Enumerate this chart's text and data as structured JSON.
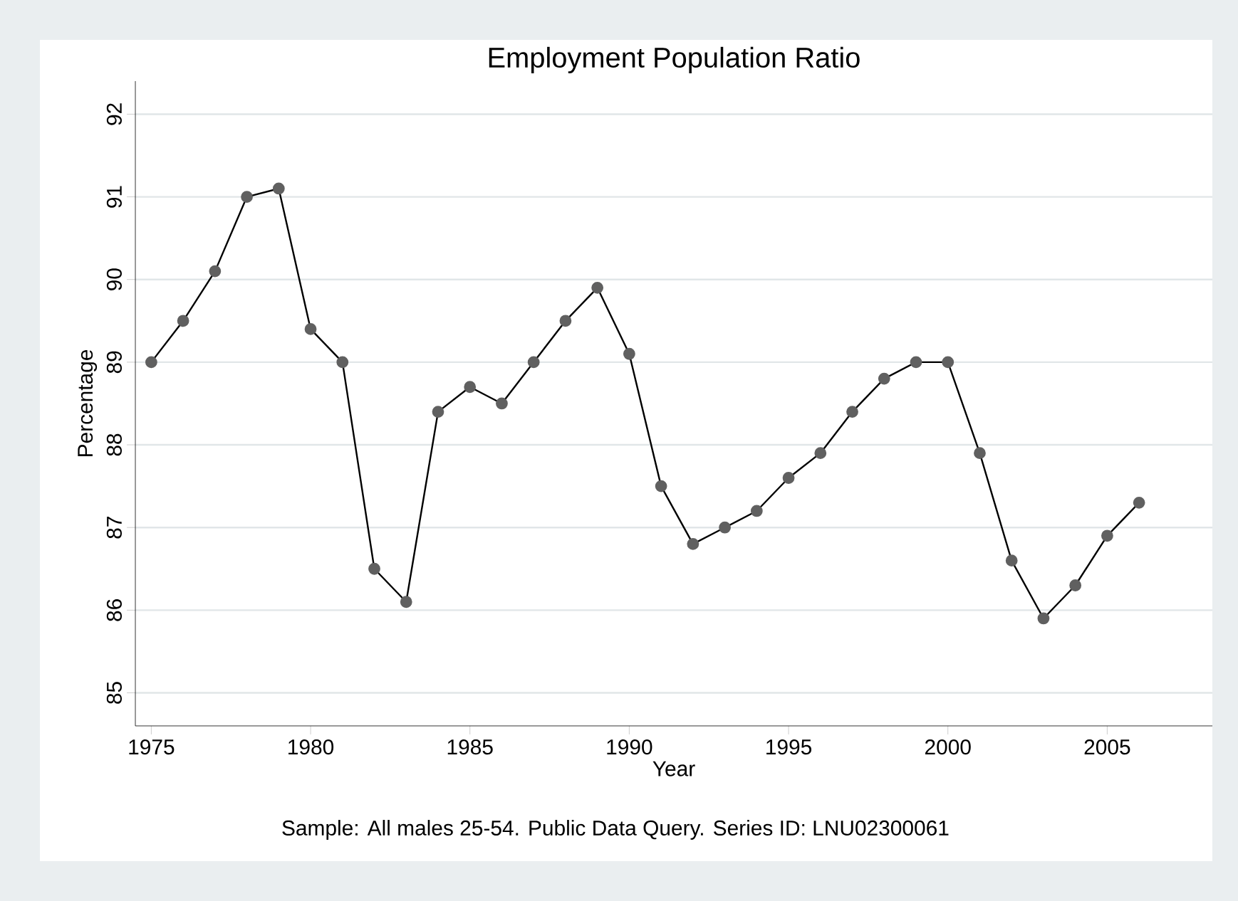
{
  "chart_data": {
    "type": "line",
    "title": "Employment Population Ratio",
    "xlabel": "Year",
    "ylabel": "Percentage",
    "annotations": [
      "Sample: All males 25-54. Public Data Query. Series ID: LNU02300061"
    ],
    "x": [
      1975,
      1976,
      1977,
      1978,
      1979,
      1980,
      1981,
      1982,
      1983,
      1984,
      1985,
      1986,
      1987,
      1988,
      1989,
      1990,
      1991,
      1992,
      1993,
      1994,
      1995,
      1996,
      1997,
      1998,
      1999,
      2000,
      2001,
      2002,
      2003,
      2004,
      2005,
      2006
    ],
    "series": [
      {
        "color": "#606060",
        "values": [
          89.0,
          89.5,
          90.1,
          91.0,
          91.1,
          89.4,
          89.0,
          86.5,
          86.1,
          88.4,
          88.7,
          88.5,
          89.0,
          89.5,
          89.9,
          89.1,
          87.5,
          86.8,
          87.0,
          87.2,
          87.6,
          87.9,
          88.4,
          88.8,
          89.0,
          89.0,
          87.9,
          86.6,
          85.9,
          86.3,
          86.9,
          87.3
        ]
      }
    ],
    "xlim": [
      1974.5,
      2008.3
    ],
    "ylim": [
      84.6,
      92.4
    ],
    "xticks": [
      1975,
      1980,
      1985,
      1990,
      1995,
      2000,
      2005
    ],
    "yticks": [
      85,
      86,
      87,
      88,
      89,
      90,
      91,
      92
    ],
    "grid": "y",
    "marker": "circle",
    "line_style": "solid"
  }
}
